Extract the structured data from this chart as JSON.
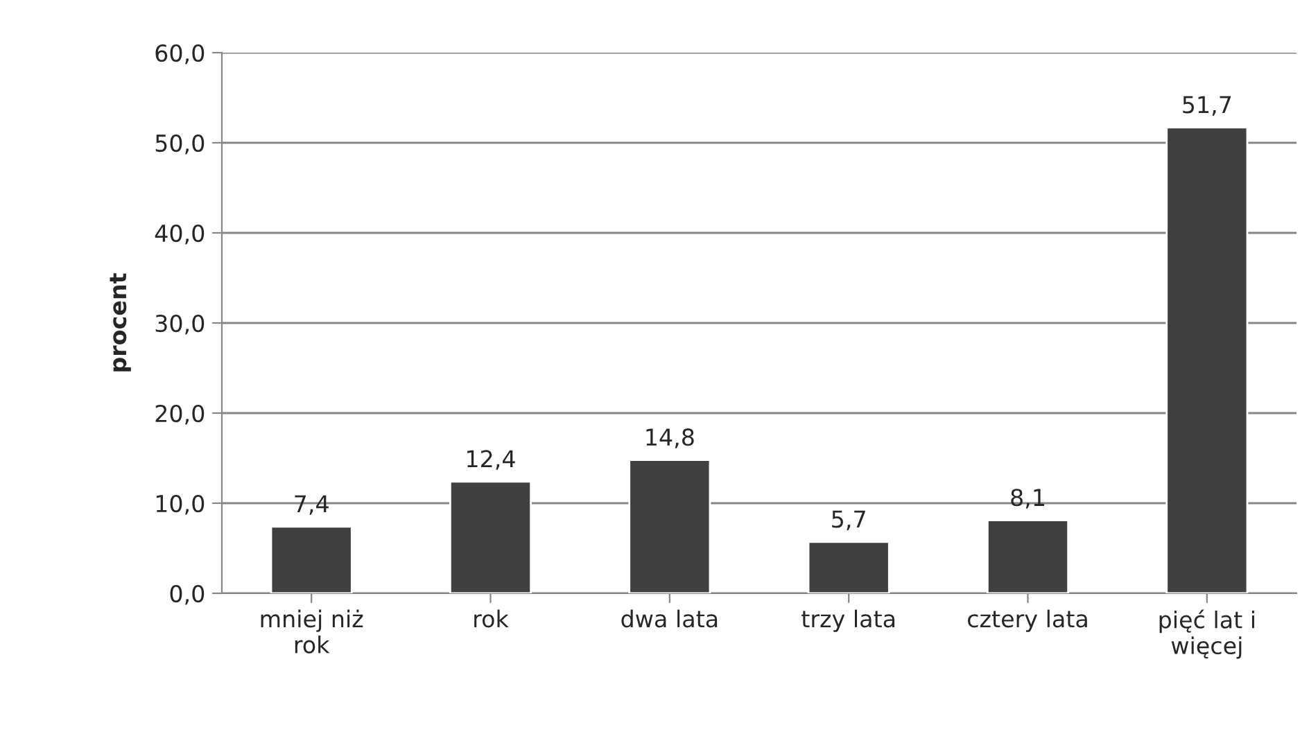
{
  "chart_data": {
    "type": "bar",
    "ylabel": "procent",
    "categories": [
      "mniej niż\nrok",
      "rok",
      "dwa lata",
      "trzy lata",
      "cztery lata",
      "pięć lat i\nwięcej"
    ],
    "values": [
      7.4,
      12.4,
      14.8,
      5.7,
      8.1,
      51.7
    ],
    "value_labels": [
      "7,4",
      "12,4",
      "14,8",
      "5,7",
      "8,1",
      "51,7"
    ],
    "color": "#404040",
    "ylim": [
      0,
      60
    ],
    "yticks": [
      {
        "value": 0,
        "label": "0,0"
      },
      {
        "value": 10,
        "label": "10,0"
      },
      {
        "value": 20,
        "label": "20,0"
      },
      {
        "value": 30,
        "label": "30,0"
      },
      {
        "value": 40,
        "label": "40,0"
      },
      {
        "value": 50,
        "label": "50,0"
      },
      {
        "value": 60,
        "label": "60,0"
      }
    ],
    "grid": "y"
  }
}
